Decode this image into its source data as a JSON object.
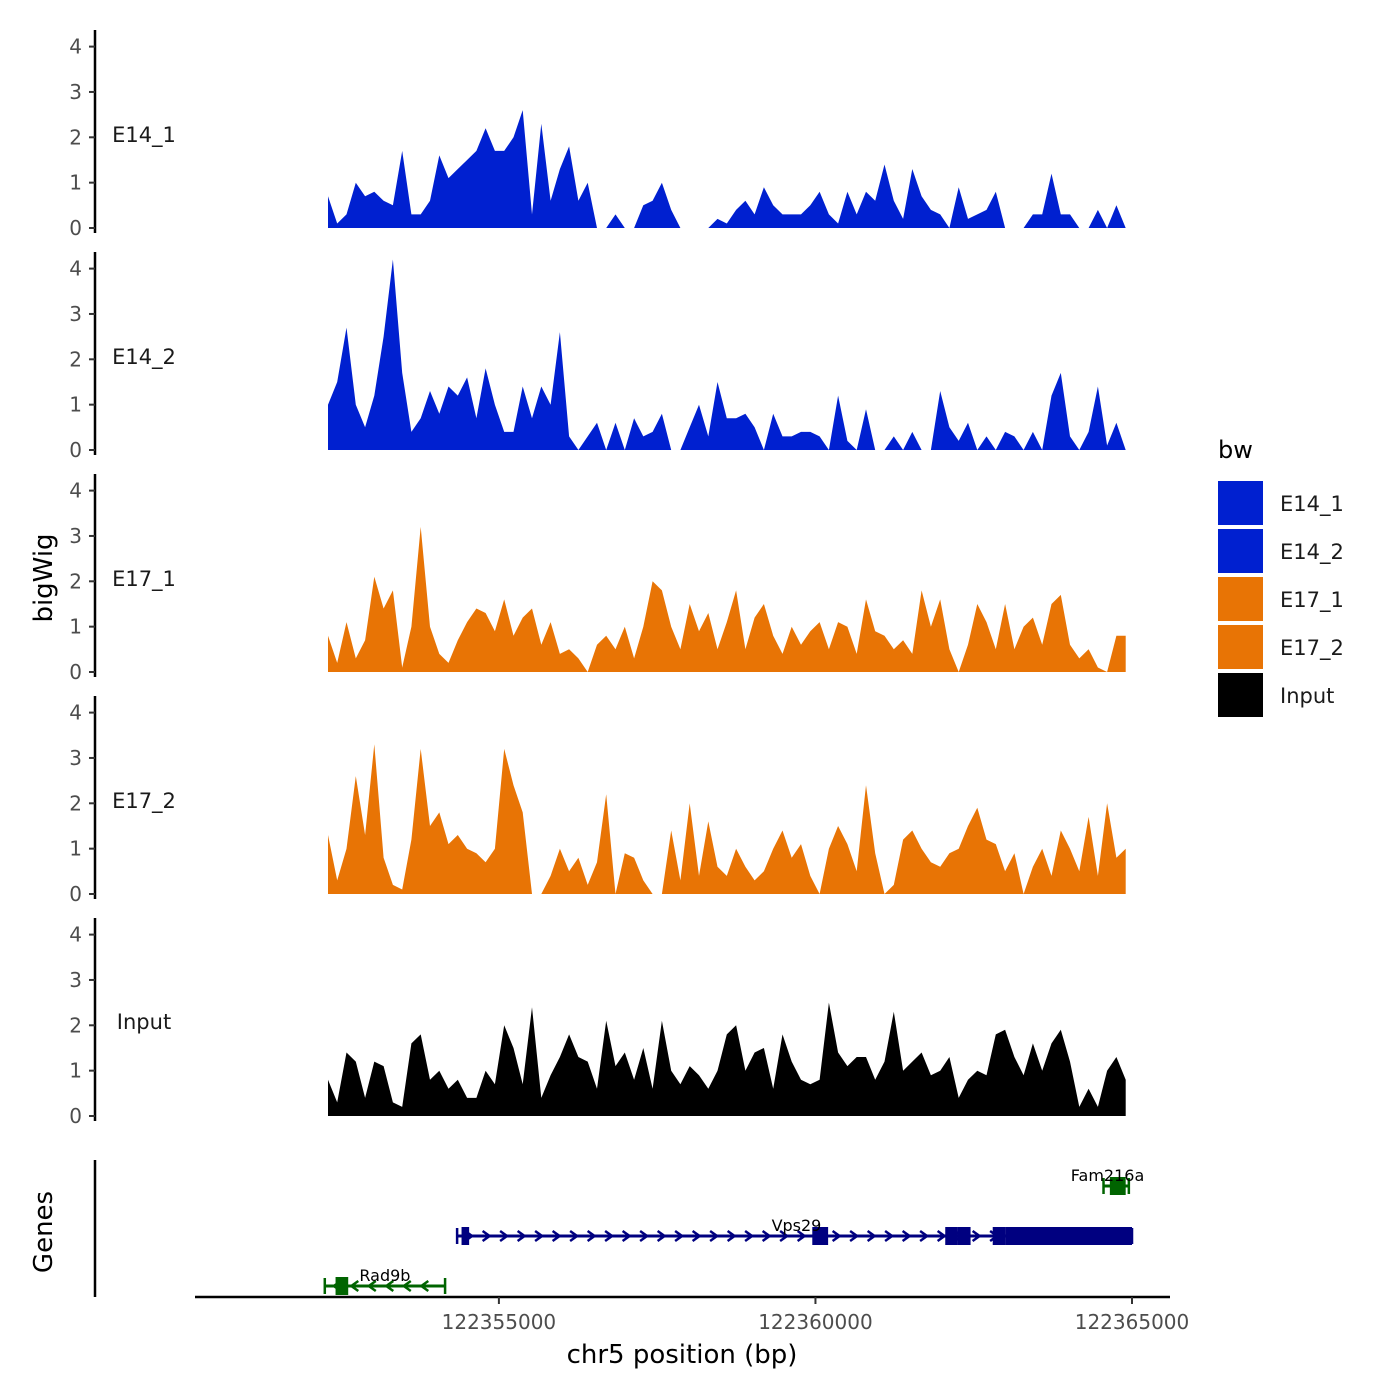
{
  "chart_data": {
    "type": "area",
    "subtype": "genome-browser-tracks",
    "xlabel": "chr5 position (bp)",
    "ylabel": "bigWig",
    "genes_label": "Genes",
    "xlim": [
      122350200,
      122365600
    ],
    "x_ticks": [
      122355000,
      122360000,
      122365000
    ],
    "x_tick_labels": [
      "122355000",
      "122360000",
      "122365000"
    ],
    "ylim": [
      0,
      4.3
    ],
    "y_ticks": [
      0,
      1,
      2,
      3,
      4
    ],
    "y_tick_labels": [
      "0",
      "1",
      "2",
      "3",
      "4"
    ],
    "data_x_range": [
      122352300,
      122364900
    ],
    "legend": {
      "title": "bw",
      "entries": [
        {
          "label": "E14_1",
          "color": "#0020D0"
        },
        {
          "label": "E14_2",
          "color": "#0020D0"
        },
        {
          "label": "E17_1",
          "color": "#E87405"
        },
        {
          "label": "E17_2",
          "color": "#E87405"
        },
        {
          "label": "Input",
          "color": "#000000"
        }
      ]
    },
    "series": [
      {
        "name": "E14_1",
        "color": "#0020D0",
        "values": [
          0.7,
          0.1,
          0.3,
          1.0,
          0.7,
          0.8,
          0.6,
          0.5,
          1.7,
          0.3,
          0.3,
          0.6,
          1.6,
          1.1,
          1.3,
          1.5,
          1.7,
          2.2,
          1.7,
          1.7,
          2.0,
          2.6,
          0.3,
          2.3,
          0.6,
          1.3,
          1.8,
          0.6,
          1.0,
          0.0,
          0.0,
          0.3,
          0.0,
          0.0,
          0.5,
          0.6,
          1.0,
          0.4,
          0.0,
          0.0,
          0.0,
          0.0,
          0.2,
          0.1,
          0.4,
          0.6,
          0.3,
          0.9,
          0.5,
          0.3,
          0.3,
          0.3,
          0.5,
          0.8,
          0.3,
          0.1,
          0.8,
          0.3,
          0.8,
          0.6,
          1.4,
          0.6,
          0.2,
          1.3,
          0.7,
          0.4,
          0.3,
          0.0,
          0.9,
          0.2,
          0.3,
          0.4,
          0.8,
          0.0,
          0.0,
          0.0,
          0.3,
          0.3,
          1.2,
          0.3,
          0.3,
          0.0,
          0.0,
          0.4,
          0.0,
          0.5,
          0.0
        ]
      },
      {
        "name": "E14_2",
        "color": "#0020D0",
        "values": [
          1.0,
          1.5,
          2.7,
          1.0,
          0.5,
          1.2,
          2.5,
          4.2,
          1.7,
          0.4,
          0.7,
          1.3,
          0.8,
          1.4,
          1.2,
          1.6,
          0.7,
          1.8,
          1.0,
          0.4,
          0.4,
          1.4,
          0.7,
          1.4,
          1.0,
          2.6,
          0.3,
          0.0,
          0.3,
          0.6,
          0.0,
          0.6,
          0.0,
          0.7,
          0.3,
          0.4,
          0.8,
          0.0,
          0.0,
          0.5,
          1.0,
          0.3,
          1.5,
          0.7,
          0.7,
          0.8,
          0.5,
          0.0,
          0.8,
          0.3,
          0.3,
          0.4,
          0.4,
          0.3,
          0.0,
          1.2,
          0.2,
          0.0,
          0.9,
          0.0,
          0.0,
          0.3,
          0.0,
          0.4,
          0.0,
          0.0,
          1.3,
          0.5,
          0.2,
          0.6,
          0.0,
          0.3,
          0.0,
          0.4,
          0.3,
          0.0,
          0.4,
          0.0,
          1.2,
          1.7,
          0.3,
          0.0,
          0.4,
          1.4,
          0.1,
          0.6,
          0.0
        ]
      },
      {
        "name": "E17_1",
        "color": "#E87405",
        "values": [
          0.8,
          0.2,
          1.1,
          0.3,
          0.7,
          2.1,
          1.4,
          1.8,
          0.1,
          1.0,
          3.2,
          1.0,
          0.4,
          0.2,
          0.7,
          1.1,
          1.4,
          1.3,
          0.9,
          1.6,
          0.8,
          1.2,
          1.4,
          0.6,
          1.1,
          0.4,
          0.5,
          0.3,
          0.0,
          0.6,
          0.8,
          0.5,
          1.0,
          0.3,
          1.0,
          2.0,
          1.8,
          1.0,
          0.5,
          1.5,
          0.9,
          1.3,
          0.5,
          1.1,
          1.8,
          0.5,
          1.2,
          1.5,
          0.8,
          0.4,
          1.0,
          0.6,
          0.9,
          1.1,
          0.5,
          1.1,
          1.0,
          0.4,
          1.6,
          0.9,
          0.8,
          0.5,
          0.7,
          0.4,
          1.8,
          1.0,
          1.6,
          0.5,
          0.0,
          0.6,
          1.5,
          1.1,
          0.5,
          1.5,
          0.5,
          1.0,
          1.2,
          0.6,
          1.5,
          1.7,
          0.6,
          0.3,
          0.5,
          0.1,
          0.0,
          0.8,
          0.8
        ]
      },
      {
        "name": "E17_2",
        "color": "#E87405",
        "values": [
          1.3,
          0.3,
          1.0,
          2.6,
          1.3,
          3.3,
          0.8,
          0.2,
          0.1,
          1.2,
          3.2,
          1.5,
          1.8,
          1.1,
          1.3,
          1.0,
          0.9,
          0.7,
          1.0,
          3.2,
          2.4,
          1.8,
          0.0,
          0.0,
          0.4,
          1.0,
          0.5,
          0.8,
          0.2,
          0.7,
          2.2,
          0.0,
          0.9,
          0.8,
          0.3,
          0.0,
          0.0,
          1.4,
          0.3,
          2.0,
          0.4,
          1.6,
          0.6,
          0.4,
          1.0,
          0.6,
          0.3,
          0.5,
          1.0,
          1.4,
          0.8,
          1.1,
          0.4,
          0.0,
          1.0,
          1.5,
          1.1,
          0.5,
          2.4,
          0.9,
          0.0,
          0.2,
          1.2,
          1.4,
          1.0,
          0.7,
          0.6,
          0.9,
          1.0,
          1.5,
          1.9,
          1.2,
          1.1,
          0.5,
          0.9,
          0.0,
          0.6,
          1.0,
          0.4,
          1.4,
          1.0,
          0.5,
          1.7,
          0.4,
          2.0,
          0.8,
          1.0
        ]
      },
      {
        "name": "Input",
        "color": "#000000",
        "values": [
          0.8,
          0.3,
          1.4,
          1.2,
          0.4,
          1.2,
          1.1,
          0.3,
          0.2,
          1.6,
          1.8,
          0.8,
          1.0,
          0.6,
          0.8,
          0.4,
          0.4,
          1.0,
          0.7,
          2.0,
          1.5,
          0.7,
          2.4,
          0.4,
          0.9,
          1.3,
          1.8,
          1.3,
          1.2,
          0.6,
          2.1,
          1.1,
          1.4,
          0.8,
          1.5,
          0.6,
          2.1,
          1.0,
          0.7,
          1.1,
          0.9,
          0.6,
          1.0,
          1.8,
          2.0,
          1.0,
          1.4,
          1.5,
          0.6,
          1.8,
          1.2,
          0.8,
          0.7,
          0.8,
          2.5,
          1.4,
          1.1,
          1.3,
          1.3,
          0.8,
          1.2,
          2.3,
          1.0,
          1.2,
          1.4,
          0.9,
          1.0,
          1.3,
          0.4,
          0.8,
          1.0,
          0.9,
          1.8,
          1.9,
          1.3,
          0.9,
          1.6,
          1.0,
          1.6,
          1.9,
          1.2,
          0.2,
          0.6,
          0.2,
          1.0,
          1.3,
          0.8
        ]
      }
    ],
    "genes": [
      {
        "name": "Fam216a",
        "strand": "+",
        "color": "#006400",
        "row": 0,
        "start": 122364550,
        "end": 122364950,
        "exons": [
          [
            122364650,
            122364900
          ]
        ]
      },
      {
        "name": "Vps29",
        "strand": "+",
        "color": "#000080",
        "row": 1,
        "start": 122354340,
        "end": 122365000,
        "exons": [
          [
            122354410,
            122354530
          ],
          [
            122359950,
            122360200
          ],
          [
            122362050,
            122362250
          ],
          [
            122362250,
            122362450
          ],
          [
            122362800,
            122363000
          ],
          [
            122363000,
            122365000
          ]
        ]
      },
      {
        "name": "Rad9b",
        "strand": "-",
        "color": "#006400",
        "row": 2,
        "start": 122352250,
        "end": 122354150,
        "exons": [
          [
            122352420,
            122352620
          ]
        ]
      }
    ]
  }
}
